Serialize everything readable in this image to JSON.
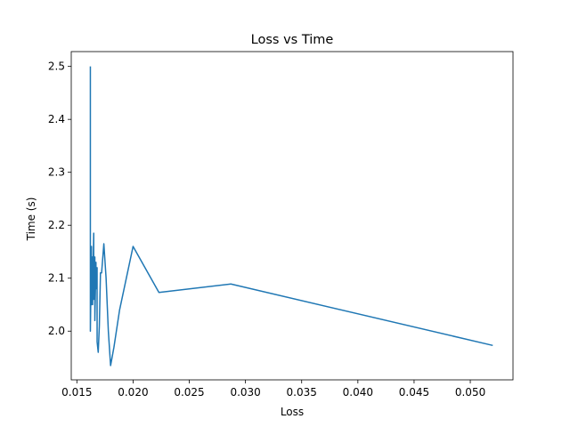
{
  "chart_data": {
    "type": "line",
    "title": "Loss vs Time",
    "xlabel": "Loss",
    "ylabel": "Time (s)",
    "xlim": [
      0.0145,
      0.0538
    ],
    "ylim": [
      1.908,
      2.528
    ],
    "xticks": [
      0.015,
      0.02,
      0.025,
      0.03,
      0.035,
      0.04,
      0.045,
      0.05
    ],
    "xtick_labels": [
      "0.015",
      "0.020",
      "0.025",
      "0.030",
      "0.035",
      "0.040",
      "0.045",
      "0.050"
    ],
    "yticks": [
      2.0,
      2.1,
      2.2,
      2.3,
      2.4,
      2.5
    ],
    "ytick_labels": [
      "2.0",
      "2.1",
      "2.2",
      "2.3",
      "2.4",
      "2.5"
    ],
    "grid": false,
    "legend": "none",
    "series": [
      {
        "color": "#1f77b4",
        "x": [
          0.0162,
          0.0162,
          0.0163,
          0.0163,
          0.0164,
          0.0164,
          0.0165,
          0.0165,
          0.0166,
          0.0166,
          0.0167,
          0.0167,
          0.0168,
          0.0168,
          0.0169,
          0.017,
          0.0171,
          0.0172,
          0.0174,
          0.0176,
          0.0178,
          0.018,
          0.0183,
          0.0188,
          0.02,
          0.0223,
          0.0287,
          0.052
        ],
        "y": [
          2.5,
          2.0,
          2.16,
          2.05,
          2.14,
          2.05,
          2.185,
          2.06,
          2.14,
          2.02,
          2.13,
          2.08,
          2.12,
          1.98,
          1.96,
          2.01,
          2.11,
          2.11,
          2.165,
          2.1,
          2.0,
          1.935,
          1.97,
          2.04,
          2.16,
          2.073,
          2.089,
          1.973
        ]
      }
    ]
  }
}
